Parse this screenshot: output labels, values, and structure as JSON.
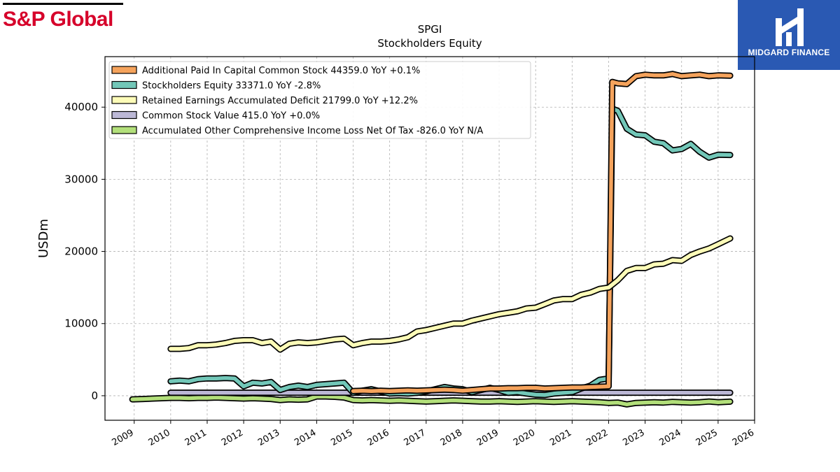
{
  "branding": {
    "left_logo_text": "S&P Global",
    "left_logo_color": "#d6002a",
    "right_logo_text": "MIDGARD FINANCE",
    "right_logo_bg": "#2a59b3"
  },
  "chart_data": {
    "type": "line",
    "title": "SPGI",
    "subtitle": "Stockholders  Equity",
    "ylabel": "USDm",
    "xlabel": "",
    "xlim": [
      2008.2,
      2026.0
    ],
    "ylim": [
      -3400,
      47000
    ],
    "x_ticks": [
      2009,
      2010,
      2011,
      2012,
      2013,
      2014,
      2015,
      2016,
      2017,
      2018,
      2019,
      2020,
      2021,
      2022,
      2023,
      2024,
      2025,
      2026
    ],
    "x_tick_labels": [
      "2009",
      "2010",
      "2011",
      "2012",
      "2013",
      "2014",
      "2015",
      "2016",
      "2017",
      "2018",
      "2019",
      "2020",
      "2021",
      "2022",
      "2023",
      "2024",
      "2025",
      "2026"
    ],
    "y_ticks": [
      0,
      10000,
      20000,
      30000,
      40000
    ],
    "y_tick_labels": [
      "0",
      "10000",
      "20000",
      "30000",
      "40000"
    ],
    "grid": true,
    "legend_position": "top-left",
    "series": [
      {
        "name": "Additional Paid In Capital Common Stock",
        "legend": "Additional Paid In Capital Common Stock  44359.0 YoY +0.1%",
        "color": "#f5a35c",
        "x": [
          2015.0,
          2015.25,
          2015.5,
          2015.75,
          2016.0,
          2016.25,
          2016.5,
          2016.75,
          2017.0,
          2017.25,
          2017.5,
          2017.75,
          2018.0,
          2018.25,
          2018.5,
          2018.75,
          2019.0,
          2019.25,
          2019.5,
          2019.75,
          2020.0,
          2020.25,
          2020.5,
          2020.75,
          2021.0,
          2021.25,
          2021.5,
          2021.75,
          2022.0,
          2022.1,
          2022.25,
          2022.5,
          2022.75,
          2023.0,
          2023.25,
          2023.5,
          2023.75,
          2024.0,
          2024.25,
          2024.5,
          2024.75,
          2025.0,
          2025.33
        ],
        "y": [
          650,
          700,
          650,
          700,
          650,
          700,
          750,
          700,
          750,
          800,
          850,
          800,
          700,
          800,
          900,
          1000,
          1000,
          1050,
          1050,
          1100,
          1100,
          1000,
          1050,
          1100,
          1150,
          1150,
          1200,
          1250,
          1300,
          43500,
          43300,
          43200,
          44300,
          44500,
          44400,
          44400,
          44600,
          44300,
          44400,
          44500,
          44300,
          44400,
          44359
        ]
      },
      {
        "name": "Stockholders Equity",
        "legend": "Stockholders Equity  33371.0 YoY -2.8%",
        "color": "#72c7b8",
        "x": [
          2010.0,
          2010.25,
          2010.5,
          2010.75,
          2011.0,
          2011.25,
          2011.5,
          2011.75,
          2012.0,
          2012.25,
          2012.5,
          2012.75,
          2013.0,
          2013.25,
          2013.5,
          2013.75,
          2014.0,
          2014.25,
          2014.5,
          2014.75,
          2015.0,
          2015.25,
          2015.5,
          2015.75,
          2016.0,
          2016.25,
          2016.5,
          2016.75,
          2017.0,
          2017.25,
          2017.5,
          2017.75,
          2018.0,
          2018.25,
          2018.5,
          2018.75,
          2019.0,
          2019.25,
          2019.5,
          2019.75,
          2020.0,
          2020.25,
          2020.5,
          2020.75,
          2021.0,
          2021.25,
          2021.5,
          2021.75,
          2022.0,
          2022.1,
          2022.25,
          2022.5,
          2022.75,
          2023.0,
          2023.25,
          2023.5,
          2023.75,
          2024.0,
          2024.25,
          2024.5,
          2024.75,
          2025.0,
          2025.33
        ],
        "y": [
          2000,
          2100,
          2000,
          2300,
          2400,
          2400,
          2450,
          2400,
          1300,
          1800,
          1700,
          1900,
          800,
          1200,
          1400,
          1200,
          1500,
          1600,
          1700,
          1800,
          400,
          700,
          900,
          600,
          300,
          350,
          300,
          400,
          600,
          900,
          1200,
          1000,
          900,
          500,
          800,
          1100,
          800,
          400,
          500,
          300,
          150,
          100,
          300,
          400,
          500,
          1000,
          1400,
          2200,
          2400,
          39800,
          39500,
          37000,
          36200,
          36100,
          35200,
          35000,
          34000,
          34200,
          34900,
          33800,
          33000,
          33400,
          33371
        ]
      },
      {
        "name": "Retained Earnings Accumulated Deficit",
        "legend": "Retained Earnings Accumulated Deficit  21799.0 YoY +12.2%",
        "color": "#fdfcb8",
        "x": [
          2010.0,
          2010.25,
          2010.5,
          2010.75,
          2011.0,
          2011.25,
          2011.5,
          2011.75,
          2012.0,
          2012.25,
          2012.5,
          2012.75,
          2013.0,
          2013.25,
          2013.5,
          2013.75,
          2014.0,
          2014.25,
          2014.5,
          2014.75,
          2015.0,
          2015.25,
          2015.5,
          2015.75,
          2016.0,
          2016.25,
          2016.5,
          2016.75,
          2017.0,
          2017.25,
          2017.5,
          2017.75,
          2018.0,
          2018.25,
          2018.5,
          2018.75,
          2019.0,
          2019.25,
          2019.5,
          2019.75,
          2020.0,
          2020.25,
          2020.5,
          2020.75,
          2021.0,
          2021.25,
          2021.5,
          2021.75,
          2022.0,
          2022.25,
          2022.5,
          2022.75,
          2023.0,
          2023.25,
          2023.5,
          2023.75,
          2024.0,
          2024.25,
          2024.5,
          2024.75,
          2025.0,
          2025.33
        ],
        "y": [
          6500,
          6500,
          6600,
          7000,
          7000,
          7100,
          7300,
          7600,
          7700,
          7700,
          7300,
          7500,
          6400,
          7200,
          7400,
          7300,
          7400,
          7600,
          7800,
          7900,
          7000,
          7300,
          7500,
          7500,
          7600,
          7800,
          8100,
          8900,
          9100,
          9400,
          9700,
          10000,
          10000,
          10400,
          10700,
          11000,
          11300,
          11500,
          11700,
          12100,
          12200,
          12700,
          13200,
          13400,
          13400,
          14000,
          14300,
          14800,
          15000,
          16000,
          17300,
          17700,
          17700,
          18200,
          18300,
          18800,
          18700,
          19500,
          20000,
          20400,
          21000,
          21799
        ]
      },
      {
        "name": "Common Stock Value",
        "legend": "Common Stock Value  415.0 YoY +0.0%",
        "color": "#bcb8d6",
        "x": [
          2010.0,
          2011.0,
          2012.0,
          2013.0,
          2014.0,
          2015.0,
          2016.0,
          2017.0,
          2018.0,
          2019.0,
          2020.0,
          2021.0,
          2022.0,
          2023.0,
          2024.0,
          2025.0,
          2025.33
        ],
        "y": [
          415,
          415,
          415,
          415,
          415,
          415,
          415,
          415,
          415,
          415,
          415,
          415,
          415,
          415,
          415,
          415,
          415
        ]
      },
      {
        "name": "Accumulated Other Comprehensive Income Loss Net Of Tax",
        "legend": "Accumulated Other Comprehensive Income Loss Net Of Tax  -826.0 YoY N/A",
        "color": "#b2df7a",
        "x": [
          2008.95,
          2009.25,
          2009.5,
          2009.75,
          2010.0,
          2010.25,
          2010.5,
          2010.75,
          2011.0,
          2011.25,
          2011.5,
          2011.75,
          2012.0,
          2012.25,
          2012.5,
          2012.75,
          2013.0,
          2013.25,
          2013.5,
          2013.75,
          2014.0,
          2014.25,
          2014.5,
          2014.75,
          2015.0,
          2015.25,
          2015.5,
          2015.75,
          2016.0,
          2016.25,
          2016.5,
          2016.75,
          2017.0,
          2017.25,
          2017.5,
          2017.75,
          2018.0,
          2018.25,
          2018.5,
          2018.75,
          2019.0,
          2019.25,
          2019.5,
          2019.75,
          2020.0,
          2020.25,
          2020.5,
          2020.75,
          2021.0,
          2021.25,
          2021.5,
          2021.75,
          2022.0,
          2022.25,
          2022.5,
          2022.75,
          2023.0,
          2023.25,
          2023.5,
          2023.75,
          2024.0,
          2024.25,
          2024.5,
          2024.75,
          2025.0,
          2025.33
        ],
        "y": [
          -500,
          -450,
          -400,
          -350,
          -300,
          -300,
          -350,
          -300,
          -300,
          -250,
          -300,
          -350,
          -400,
          -350,
          -400,
          -450,
          -600,
          -500,
          -550,
          -500,
          -100,
          -100,
          -150,
          -250,
          -600,
          -650,
          -600,
          -650,
          -700,
          -650,
          -700,
          -750,
          -800,
          -750,
          -700,
          -650,
          -700,
          -750,
          -800,
          -800,
          -750,
          -800,
          -850,
          -800,
          -750,
          -800,
          -850,
          -800,
          -750,
          -800,
          -850,
          -900,
          -1000,
          -950,
          -1200,
          -1000,
          -950,
          -900,
          -950,
          -850,
          -900,
          -950,
          -900,
          -800,
          -900,
          -826
        ]
      }
    ]
  }
}
